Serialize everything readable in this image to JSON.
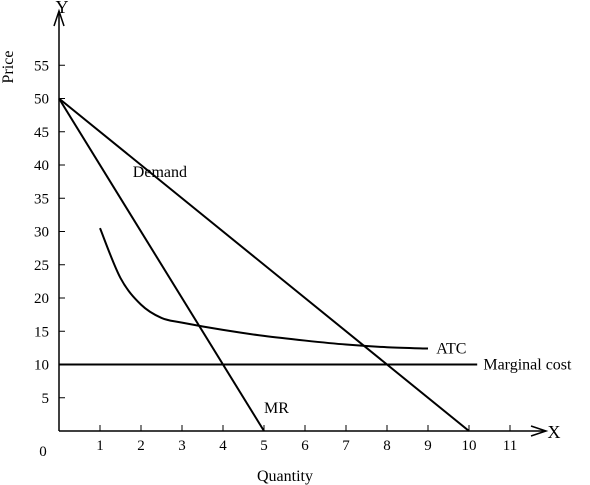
{
  "chart_data": {
    "type": "line",
    "title": "",
    "xlabel": "Quantity",
    "ylabel": "Price",
    "x_axis_letter": "X",
    "y_axis_letter": "Y",
    "origin_label": "0",
    "xlim": [
      0,
      11
    ],
    "ylim": [
      0,
      55
    ],
    "x_ticks": [
      "1",
      "2",
      "3",
      "4",
      "5",
      "6",
      "7",
      "8",
      "9",
      "10",
      "11"
    ],
    "y_ticks": [
      "5",
      "10",
      "15",
      "20",
      "25",
      "30",
      "35",
      "40",
      "45",
      "50",
      "55"
    ],
    "grid": false,
    "legend": "none",
    "series": [
      {
        "name": "Demand",
        "x": [
          0,
          10
        ],
        "y": [
          50,
          0
        ]
      },
      {
        "name": "MR",
        "x": [
          0,
          5
        ],
        "y": [
          50,
          0
        ]
      },
      {
        "name": "ATC",
        "x": [
          1,
          1.5,
          2,
          2.5,
          3,
          4,
          5,
          6,
          7,
          8,
          9
        ],
        "y": [
          30.5,
          23,
          19,
          17,
          16.3,
          15.2,
          14.3,
          13.6,
          13,
          12.6,
          12.4
        ]
      },
      {
        "name": "Marginal cost",
        "x": [
          0,
          10.2
        ],
        "y": [
          10,
          10
        ]
      }
    ]
  }
}
